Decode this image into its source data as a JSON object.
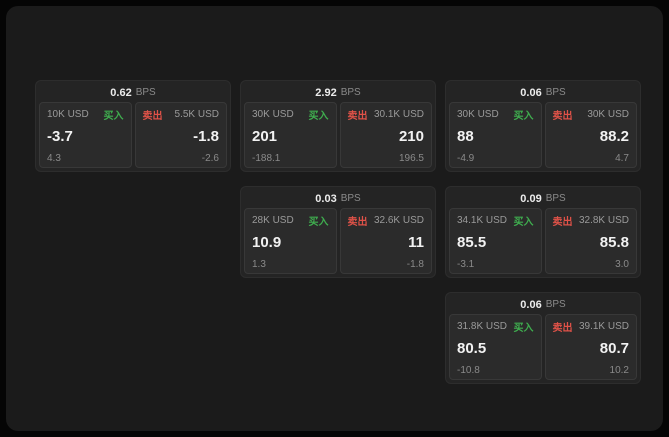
{
  "labels": {
    "bps": "BPS",
    "buy": "买入",
    "sell": "卖出"
  },
  "colors": {
    "buy": "#3fae4f",
    "sell": "#e05248",
    "panel_bg": "#2b2b2b",
    "card_bg": "#242424",
    "window_bg": "#1b1b1b"
  },
  "cards": [
    {
      "bps": "0.62",
      "buy": {
        "amount": "10K USD",
        "price": "-3.7",
        "sub": "4.3"
      },
      "sell": {
        "amount": "5.5K USD",
        "price": "-1.8",
        "sub": "-2.6"
      }
    },
    {
      "bps": "2.92",
      "buy": {
        "amount": "30K USD",
        "price": "201",
        "sub": "-188.1"
      },
      "sell": {
        "amount": "30.1K USD",
        "price": "210",
        "sub": "196.5"
      }
    },
    {
      "bps": "0.06",
      "buy": {
        "amount": "30K USD",
        "price": "88",
        "sub": "-4.9"
      },
      "sell": {
        "amount": "30K USD",
        "price": "88.2",
        "sub": "4.7"
      }
    },
    {
      "bps": "0.03",
      "buy": {
        "amount": "28K USD",
        "price": "10.9",
        "sub": "1.3"
      },
      "sell": {
        "amount": "32.6K USD",
        "price": "11",
        "sub": "-1.8"
      }
    },
    {
      "bps": "0.09",
      "buy": {
        "amount": "34.1K USD",
        "price": "85.5",
        "sub": "-3.1"
      },
      "sell": {
        "amount": "32.8K USD",
        "price": "85.8",
        "sub": "3.0"
      }
    },
    {
      "bps": "0.06",
      "buy": {
        "amount": "31.8K USD",
        "price": "80.5",
        "sub": "-10.8"
      },
      "sell": {
        "amount": "39.1K USD",
        "price": "80.7",
        "sub": "10.2"
      }
    }
  ]
}
